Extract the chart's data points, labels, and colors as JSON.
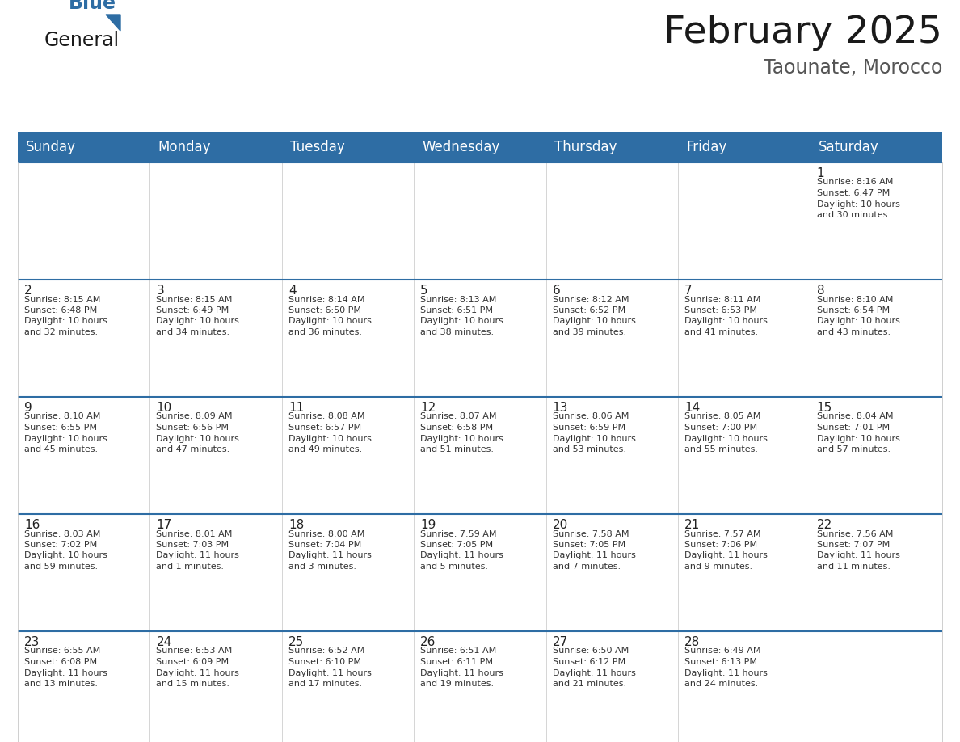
{
  "title": "February 2025",
  "subtitle": "Taounate, Morocco",
  "header_bg": "#2E6DA4",
  "header_text_color": "#FFFFFF",
  "cell_bg": "#FFFFFF",
  "cell_bg_alt": "#F5F5F5",
  "border_color": "#2E6DA4",
  "grid_color": "#BBBBBB",
  "days_of_week": [
    "Sunday",
    "Monday",
    "Tuesday",
    "Wednesday",
    "Thursday",
    "Friday",
    "Saturday"
  ],
  "weeks": [
    [
      null,
      null,
      null,
      null,
      null,
      null,
      1
    ],
    [
      2,
      3,
      4,
      5,
      6,
      7,
      8
    ],
    [
      9,
      10,
      11,
      12,
      13,
      14,
      15
    ],
    [
      16,
      17,
      18,
      19,
      20,
      21,
      22
    ],
    [
      23,
      24,
      25,
      26,
      27,
      28,
      null
    ]
  ],
  "day_data": {
    "1": {
      "sunrise": "8:16 AM",
      "sunset": "6:47 PM",
      "daylight_hours": 10,
      "daylight_minutes": 30
    },
    "2": {
      "sunrise": "8:15 AM",
      "sunset": "6:48 PM",
      "daylight_hours": 10,
      "daylight_minutes": 32
    },
    "3": {
      "sunrise": "8:15 AM",
      "sunset": "6:49 PM",
      "daylight_hours": 10,
      "daylight_minutes": 34
    },
    "4": {
      "sunrise": "8:14 AM",
      "sunset": "6:50 PM",
      "daylight_hours": 10,
      "daylight_minutes": 36
    },
    "5": {
      "sunrise": "8:13 AM",
      "sunset": "6:51 PM",
      "daylight_hours": 10,
      "daylight_minutes": 38
    },
    "6": {
      "sunrise": "8:12 AM",
      "sunset": "6:52 PM",
      "daylight_hours": 10,
      "daylight_minutes": 39
    },
    "7": {
      "sunrise": "8:11 AM",
      "sunset": "6:53 PM",
      "daylight_hours": 10,
      "daylight_minutes": 41
    },
    "8": {
      "sunrise": "8:10 AM",
      "sunset": "6:54 PM",
      "daylight_hours": 10,
      "daylight_minutes": 43
    },
    "9": {
      "sunrise": "8:10 AM",
      "sunset": "6:55 PM",
      "daylight_hours": 10,
      "daylight_minutes": 45
    },
    "10": {
      "sunrise": "8:09 AM",
      "sunset": "6:56 PM",
      "daylight_hours": 10,
      "daylight_minutes": 47
    },
    "11": {
      "sunrise": "8:08 AM",
      "sunset": "6:57 PM",
      "daylight_hours": 10,
      "daylight_minutes": 49
    },
    "12": {
      "sunrise": "8:07 AM",
      "sunset": "6:58 PM",
      "daylight_hours": 10,
      "daylight_minutes": 51
    },
    "13": {
      "sunrise": "8:06 AM",
      "sunset": "6:59 PM",
      "daylight_hours": 10,
      "daylight_minutes": 53
    },
    "14": {
      "sunrise": "8:05 AM",
      "sunset": "7:00 PM",
      "daylight_hours": 10,
      "daylight_minutes": 55
    },
    "15": {
      "sunrise": "8:04 AM",
      "sunset": "7:01 PM",
      "daylight_hours": 10,
      "daylight_minutes": 57
    },
    "16": {
      "sunrise": "8:03 AM",
      "sunset": "7:02 PM",
      "daylight_hours": 10,
      "daylight_minutes": 59
    },
    "17": {
      "sunrise": "8:01 AM",
      "sunset": "7:03 PM",
      "daylight_hours": 11,
      "daylight_minutes": 1
    },
    "18": {
      "sunrise": "8:00 AM",
      "sunset": "7:04 PM",
      "daylight_hours": 11,
      "daylight_minutes": 3
    },
    "19": {
      "sunrise": "7:59 AM",
      "sunset": "7:05 PM",
      "daylight_hours": 11,
      "daylight_minutes": 5
    },
    "20": {
      "sunrise": "7:58 AM",
      "sunset": "7:05 PM",
      "daylight_hours": 11,
      "daylight_minutes": 7
    },
    "21": {
      "sunrise": "7:57 AM",
      "sunset": "7:06 PM",
      "daylight_hours": 11,
      "daylight_minutes": 9
    },
    "22": {
      "sunrise": "7:56 AM",
      "sunset": "7:07 PM",
      "daylight_hours": 11,
      "daylight_minutes": 11
    },
    "23": {
      "sunrise": "6:55 AM",
      "sunset": "6:08 PM",
      "daylight_hours": 11,
      "daylight_minutes": 13
    },
    "24": {
      "sunrise": "6:53 AM",
      "sunset": "6:09 PM",
      "daylight_hours": 11,
      "daylight_minutes": 15
    },
    "25": {
      "sunrise": "6:52 AM",
      "sunset": "6:10 PM",
      "daylight_hours": 11,
      "daylight_minutes": 17
    },
    "26": {
      "sunrise": "6:51 AM",
      "sunset": "6:11 PM",
      "daylight_hours": 11,
      "daylight_minutes": 19
    },
    "27": {
      "sunrise": "6:50 AM",
      "sunset": "6:12 PM",
      "daylight_hours": 11,
      "daylight_minutes": 21
    },
    "28": {
      "sunrise": "6:49 AM",
      "sunset": "6:13 PM",
      "daylight_hours": 11,
      "daylight_minutes": 24
    }
  }
}
